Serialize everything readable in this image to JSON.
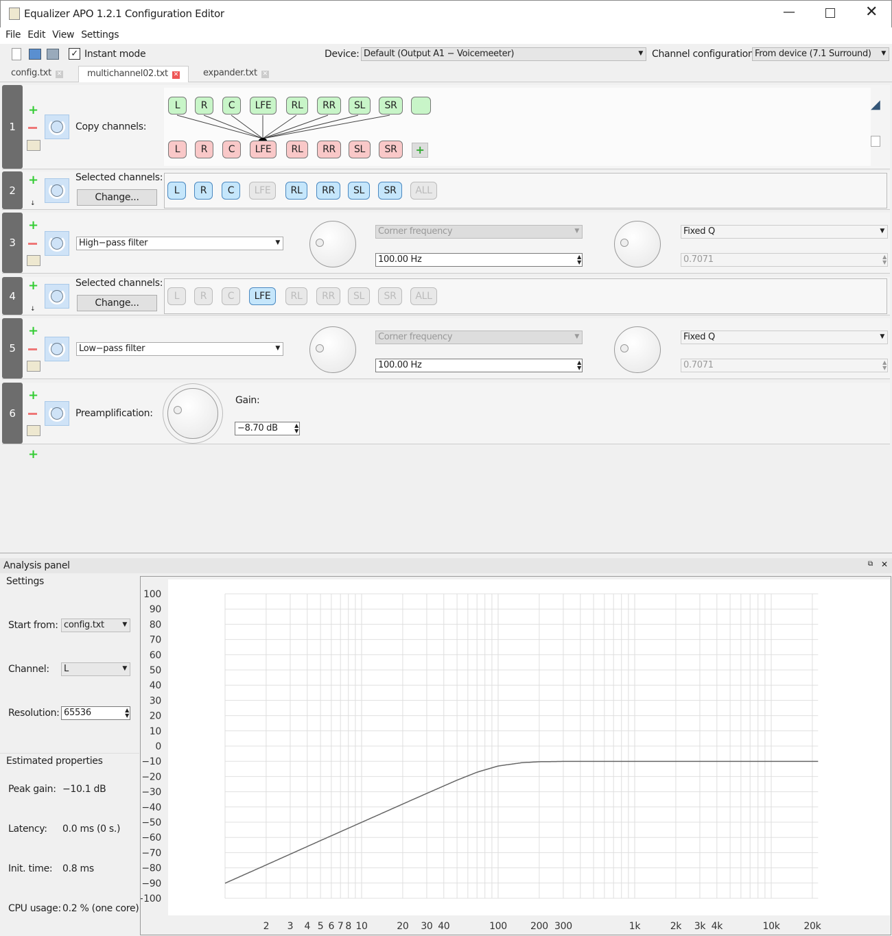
{
  "window": {
    "title": "Equalizer APO 1.2.1 Configuration Editor"
  },
  "menu": [
    "File",
    "Edit",
    "View",
    "Settings"
  ],
  "toolbar": {
    "instant_mode": "Instant mode",
    "instant_mode_checked": true,
    "device_label": "Device:",
    "device_value": "Default (Output A1 − Voicemeeter)",
    "channel_config_label": "Channel configuration:",
    "channel_config_value": "From device (7.1 Surround)"
  },
  "tabs": [
    {
      "label": "config.txt",
      "active": false
    },
    {
      "label": "multichannel02.txt",
      "active": true
    },
    {
      "label": "expander.txt",
      "active": false
    }
  ],
  "rows": {
    "r1": {
      "num": "1",
      "label": "Copy channels:",
      "sources": [
        "L",
        "R",
        "C",
        "LFE",
        "RL",
        "RR",
        "SL",
        "SR",
        ""
      ],
      "targets": [
        "L",
        "R",
        "C",
        "LFE",
        "RL",
        "RR",
        "SL",
        "SR"
      ]
    },
    "r2": {
      "num": "2",
      "label": "Selected channels:",
      "change": "Change...",
      "channels": [
        "L",
        "R",
        "C",
        "LFE",
        "RL",
        "RR",
        "SL",
        "SR",
        "ALL"
      ],
      "selected": [
        true,
        true,
        true,
        false,
        true,
        true,
        true,
        true,
        false
      ]
    },
    "r3": {
      "num": "3",
      "filter": "High−pass filter",
      "freq_mode": "Corner frequency",
      "freq": "100.00 Hz",
      "q_mode": "Fixed Q",
      "q": "0.7071"
    },
    "r4": {
      "num": "4",
      "label": "Selected channels:",
      "change": "Change...",
      "channels": [
        "L",
        "R",
        "C",
        "LFE",
        "RL",
        "RR",
        "SL",
        "SR",
        "ALL"
      ],
      "selected": [
        false,
        false,
        false,
        true,
        false,
        false,
        false,
        false,
        false
      ]
    },
    "r5": {
      "num": "5",
      "filter": "Low−pass filter",
      "freq_mode": "Corner frequency",
      "freq": "100.00 Hz",
      "q_mode": "Fixed Q",
      "q": "0.7071"
    },
    "r6": {
      "num": "6",
      "label": "Preamplification:",
      "gain_label": "Gain:",
      "gain": "−8.70 dB"
    }
  },
  "analysis": {
    "title": "Analysis panel",
    "settings": "Settings",
    "start_from_label": "Start from:",
    "start_from": "config.txt",
    "channel_label": "Channel:",
    "channel": "L",
    "resolution_label": "Resolution:",
    "resolution": "65536",
    "estimated": "Estimated properties",
    "peak_label": "Peak gain:",
    "peak": "−10.1 dB",
    "latency_label": "Latency:",
    "latency": "0.0 ms (0 s.)",
    "init_label": "Init. time:",
    "init": "0.8 ms",
    "cpu_label": "CPU usage:",
    "cpu": "0.2 % (one core)"
  },
  "chart_data": {
    "type": "line",
    "xscale": "log",
    "xlim": [
      1,
      22050
    ],
    "ylim": [
      -100,
      100
    ],
    "grid": true,
    "yticks": [
      "100",
      "90",
      "80",
      "70",
      "60",
      "50",
      "40",
      "30",
      "20",
      "10",
      "0",
      "−10",
      "−20",
      "−30",
      "−40",
      "−50",
      "−60",
      "−70",
      "−80",
      "−90",
      "−100"
    ],
    "xticks": [
      {
        "v": 2,
        "l": "2"
      },
      {
        "v": 3,
        "l": "3"
      },
      {
        "v": 4,
        "l": "4"
      },
      {
        "v": 5,
        "l": "5"
      },
      {
        "v": 6,
        "l": "6"
      },
      {
        "v": 7,
        "l": "7"
      },
      {
        "v": 8,
        "l": "8"
      },
      {
        "v": 10,
        "l": "10"
      },
      {
        "v": 20,
        "l": "20"
      },
      {
        "v": 30,
        "l": "30"
      },
      {
        "v": 40,
        "l": "40"
      },
      {
        "v": 100,
        "l": "100"
      },
      {
        "v": 200,
        "l": "200"
      },
      {
        "v": 300,
        "l": "300"
      },
      {
        "v": 1000,
        "l": "1k"
      },
      {
        "v": 2000,
        "l": "2k"
      },
      {
        "v": 3000,
        "l": "3k"
      },
      {
        "v": 4000,
        "l": "4k"
      },
      {
        "v": 10000,
        "l": "10k"
      },
      {
        "v": 20000,
        "l": "20k"
      }
    ],
    "series": [
      {
        "x": [
          1,
          2,
          3,
          5,
          10,
          20,
          30,
          50,
          70,
          100,
          150,
          200,
          300,
          1000,
          10000,
          22050
        ],
        "y": [
          -90.1,
          -78.1,
          -71.0,
          -62.1,
          -50.1,
          -38.1,
          -31.1,
          -22.4,
          -17.2,
          -13.1,
          -10.9,
          -10.3,
          -10.1,
          -10.1,
          -10.1,
          -10.1
        ]
      }
    ]
  }
}
